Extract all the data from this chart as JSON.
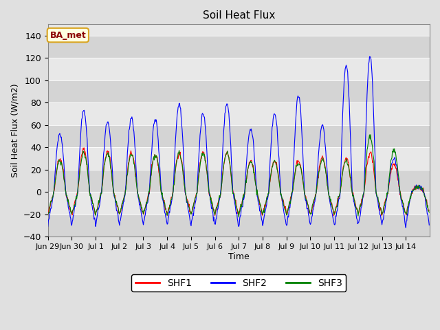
{
  "title": "Soil Heat Flux",
  "ylabel": "Soil Heat Flux (W/m2)",
  "xlabel": "Time",
  "ylim": [
    -40,
    150
  ],
  "yticks": [
    -40,
    -20,
    0,
    20,
    40,
    60,
    80,
    100,
    120,
    140
  ],
  "legend_label": "BA_met",
  "legend_labels": [
    "SHF1",
    "SHF2",
    "SHF3"
  ],
  "line_colors": [
    "red",
    "blue",
    "green"
  ],
  "bg_color": "#e0e0e0",
  "plot_bg": "#ebebeb",
  "n_days": 16,
  "n_per_day": 48,
  "shf2_peaks": [
    52,
    73,
    62,
    67,
    65,
    79,
    70,
    79,
    57,
    70,
    86,
    60,
    114,
    121,
    30,
    5
  ],
  "shf1_peaks": [
    30,
    38,
    36,
    35,
    33,
    35,
    35,
    35,
    28,
    28,
    28,
    31,
    30,
    35,
    25,
    5
  ],
  "shf3_peaks": [
    28,
    35,
    34,
    33,
    33,
    35,
    34,
    35,
    27,
    27,
    26,
    29,
    28,
    50,
    38,
    5
  ],
  "shf2_min": -30,
  "shf1_min": -20,
  "shf3_min": -20,
  "band_edges": [
    -40,
    -20,
    0,
    20,
    40,
    60,
    80,
    100,
    120,
    140,
    155
  ],
  "band_colors_even": "#d4d4d4",
  "band_colors_odd": "#e8e8e8",
  "tick_labels": [
    "Jun 29",
    "Jun 30",
    "Jul 1",
    "Jul 2",
    "Jul 3",
    "Jul 4",
    "Jul 5",
    "Jul 6",
    "Jul 7",
    "Jul 8",
    "Jul 9",
    "Jul 10",
    "Jul 11",
    "Jul 12",
    "Jul 13",
    "Jul 14"
  ]
}
